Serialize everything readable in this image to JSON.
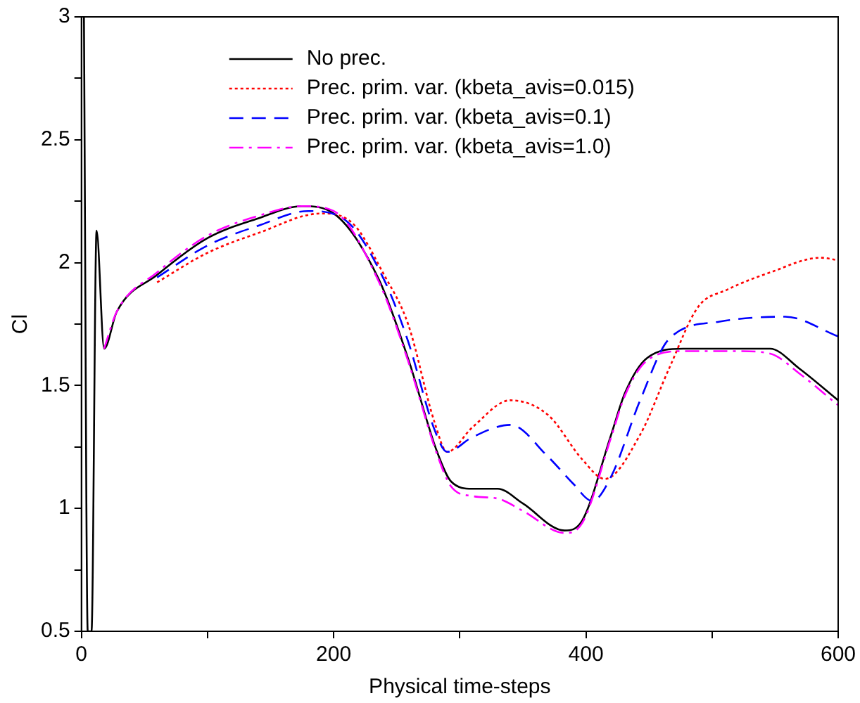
{
  "chart_data": {
    "type": "line",
    "xlabel": "Physical time-steps",
    "ylabel": "Cl",
    "xlim": [
      0,
      600
    ],
    "ylim": [
      0.5,
      3
    ],
    "xticks": [
      0,
      {
        "value": 100,
        "label": null
      },
      200,
      {
        "value": 300,
        "label": null
      },
      400,
      {
        "value": 500,
        "label": null
      },
      600
    ],
    "yticks": [
      0.5,
      {
        "value": 0.75,
        "label": null
      },
      1,
      {
        "value": 1.25,
        "label": null
      },
      1.5,
      {
        "value": 1.75,
        "label": null
      },
      2,
      {
        "value": 2.25,
        "label": null
      },
      2.5,
      {
        "value": 2.75,
        "label": null
      },
      3
    ],
    "grid": false,
    "legend": "top",
    "marker": "none",
    "series": [
      {
        "name": "No prec.",
        "color": "#000000",
        "line_style": "solid",
        "x": [
          2,
          5,
          8,
          12,
          18,
          28,
          60,
          100,
          140,
          175,
          200,
          236,
          259,
          282,
          293,
          310,
          330,
          350,
          383,
          397,
          420,
          431,
          448,
          477,
          520,
          546,
          569,
          600
        ],
        "values": [
          3,
          0.5,
          0.5,
          2.13,
          1.65,
          1.8,
          1.95,
          2.1,
          2.18,
          2.23,
          2.2,
          1.93,
          1.61,
          1.23,
          1.11,
          1.08,
          1.08,
          1.02,
          0.91,
          0.95,
          1.3,
          1.47,
          1.61,
          1.65,
          1.65,
          1.65,
          1.57,
          1.44
        ]
      },
      {
        "name": "Prec. prim. var. (kbeta_avis=0.015)",
        "color": "#ff0000",
        "line_style": "dotted",
        "x": [
          60,
          100,
          140,
          190,
          215,
          240,
          259,
          280,
          290,
          310,
          340,
          370,
          397,
          415,
          443,
          466,
          489,
          512,
          546,
          586,
          600
        ],
        "values": [
          1.92,
          2.04,
          2.12,
          2.2,
          2.16,
          1.95,
          1.75,
          1.35,
          1.23,
          1.33,
          1.44,
          1.38,
          1.2,
          1.12,
          1.3,
          1.57,
          1.82,
          1.89,
          1.96,
          2.02,
          2.01
        ]
      },
      {
        "name": "Prec. prim. var. (kbeta_avis=0.1)",
        "color": "#0000ff",
        "line_style": "dashed",
        "x": [
          60,
          100,
          140,
          180,
          210,
          240,
          259,
          280,
          290,
          310,
          340,
          370,
          390,
          405,
          420,
          443,
          466,
          506,
          558,
          600
        ],
        "values": [
          1.94,
          2.07,
          2.15,
          2.21,
          2.17,
          1.93,
          1.68,
          1.32,
          1.23,
          1.29,
          1.34,
          1.21,
          1.1,
          1.03,
          1.13,
          1.44,
          1.69,
          1.76,
          1.78,
          1.7
        ]
      },
      {
        "name": "Prec. prim. var. (kbeta_avis=1.0)",
        "color": "#ff00ff",
        "line_style": "dashdot",
        "x": [
          18,
          28,
          60,
          100,
          140,
          175,
          200,
          236,
          259,
          282,
          293,
          310,
          330,
          350,
          383,
          397,
          420,
          431,
          448,
          477,
          520,
          546,
          569,
          600
        ],
        "values": [
          1.65,
          1.8,
          1.96,
          2.11,
          2.19,
          2.23,
          2.21,
          1.92,
          1.6,
          1.22,
          1.09,
          1.05,
          1.04,
          0.99,
          0.9,
          0.94,
          1.29,
          1.46,
          1.6,
          1.64,
          1.64,
          1.63,
          1.55,
          1.42
        ]
      }
    ]
  }
}
